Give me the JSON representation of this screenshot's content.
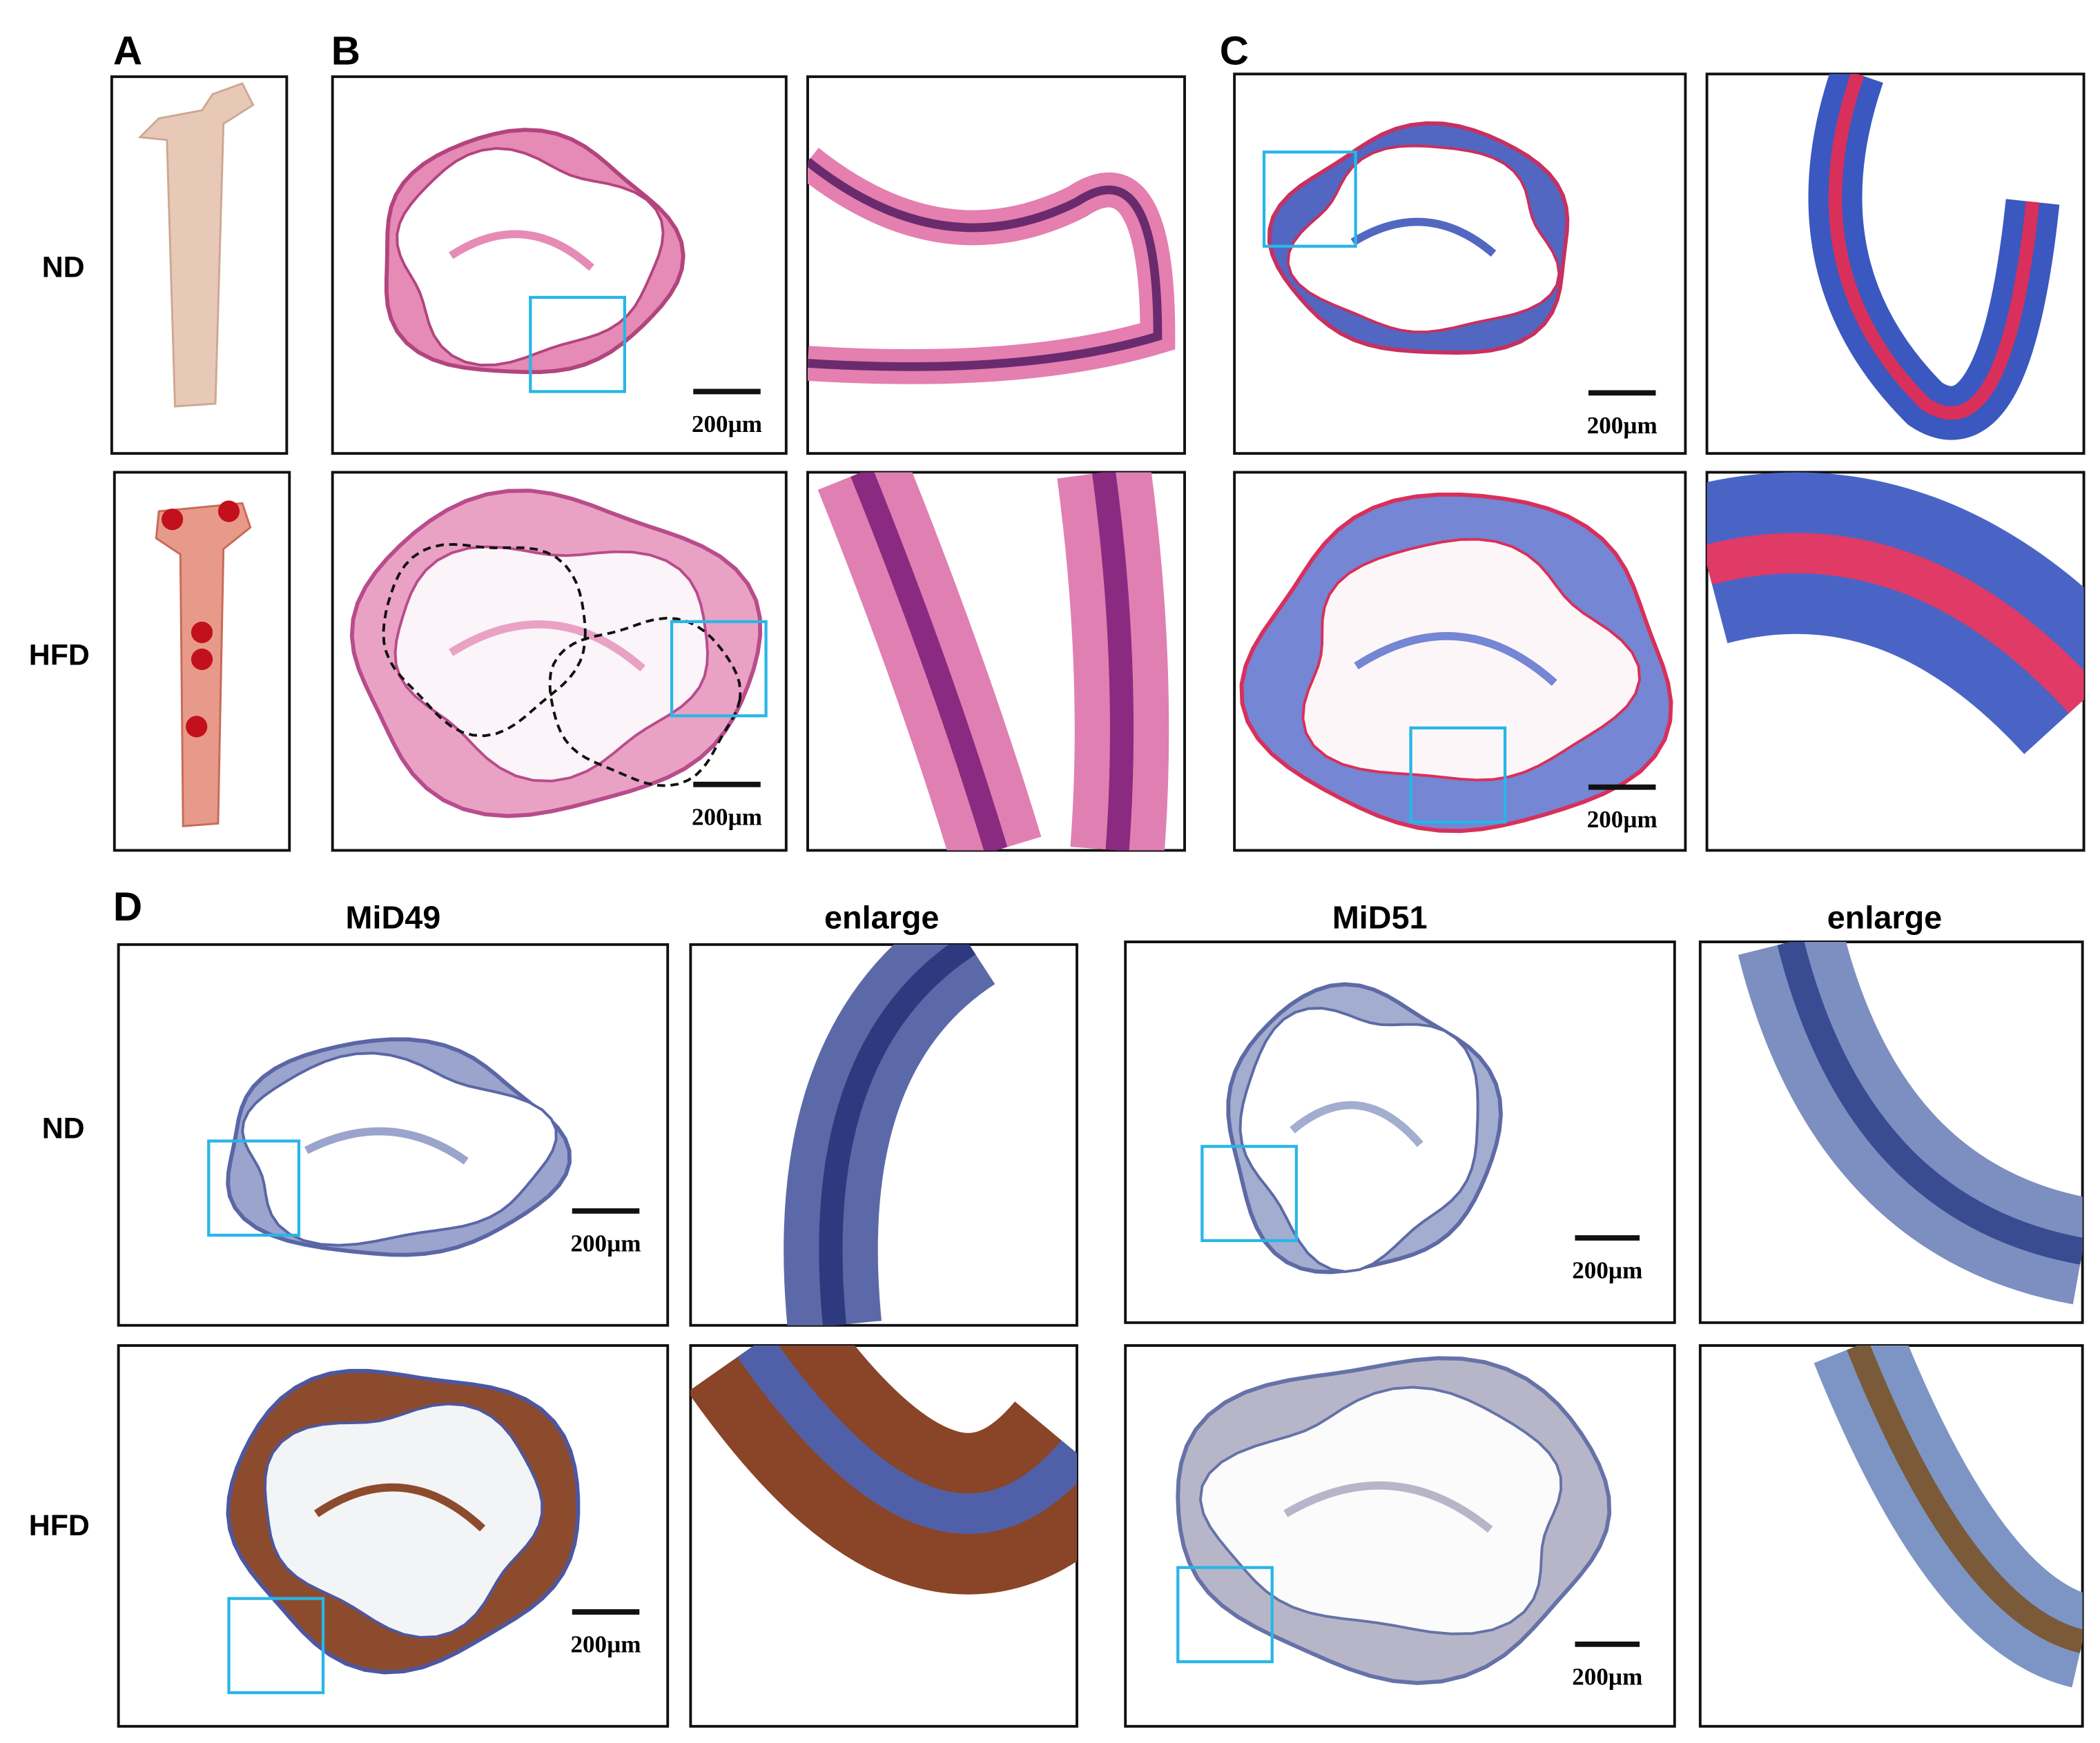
{
  "panel_a": {
    "label": "A"
  },
  "panel_b": {
    "label": "B",
    "scale_bars": [
      "200µm",
      "200µm"
    ]
  },
  "panel_c": {
    "label": "C",
    "scale_bars": [
      "200µm",
      "200µm"
    ]
  },
  "top_row_labels": [
    "ND",
    "HFD"
  ],
  "panel_d": {
    "label": "D",
    "columns": [
      "MiD49",
      "enlarge",
      "MiD51",
      "enlarge"
    ],
    "row_labels": [
      "ND",
      "HFD"
    ],
    "scale_bars": [
      "200µm",
      "200µm",
      "200µm",
      "200µm"
    ]
  }
}
